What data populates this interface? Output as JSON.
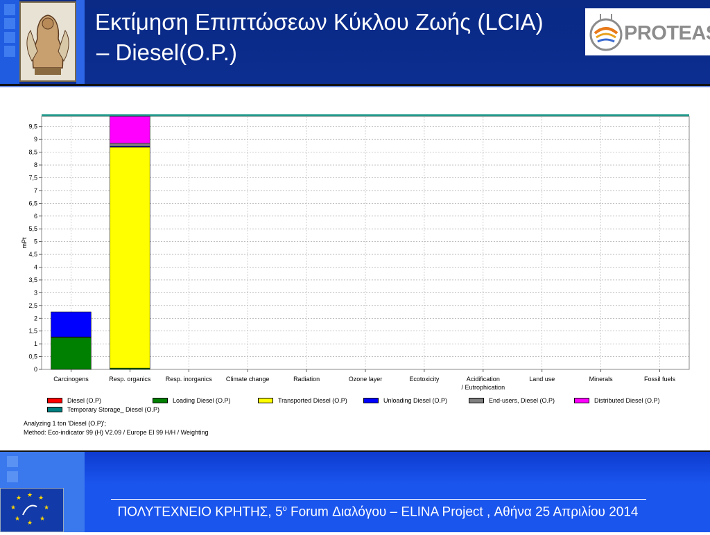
{
  "header": {
    "title_line1": "Εκτίμηση Επιπτώσεων Κύκλου Ζωής (LCIA)",
    "title_line2": "–  Diesel(O.P.)",
    "partner_logo_text": "PROTEAS"
  },
  "chart_data": {
    "type": "bar",
    "stacked": true,
    "ylabel": "mPt",
    "ylim": [
      0,
      9.9
    ],
    "yticks": [
      "0",
      "0,5",
      "1",
      "1,5",
      "2",
      "2,5",
      "3",
      "3,5",
      "4",
      "4,5",
      "5",
      "5,5",
      "6",
      "6,5",
      "7",
      "7,5",
      "8",
      "8,5",
      "9",
      "9,5"
    ],
    "categories": [
      "Carcinogens",
      "Resp. organics",
      "Resp. inorganics",
      "Climate change",
      "Radiation",
      "Ozone layer",
      "Ecotoxicity",
      "Acidification / Eutrophication",
      "Land use",
      "Minerals",
      "Fossil fuels"
    ],
    "category_lines": [
      [
        "Carcinogens"
      ],
      [
        "Resp. organics"
      ],
      [
        "Resp. inorganics"
      ],
      [
        "Climate change"
      ],
      [
        "Radiation"
      ],
      [
        "Ozone layer"
      ],
      [
        "Ecotoxicity"
      ],
      [
        "Acidification",
        "/ Eutrophication"
      ],
      [
        "Land use"
      ],
      [
        "Minerals"
      ],
      [
        "Fossil fuels"
      ]
    ],
    "series": [
      {
        "name": "Diesel (O.P)",
        "color": "#ff0000",
        "values": [
          0,
          0,
          0,
          0,
          0,
          0,
          0,
          0,
          0,
          0,
          0
        ]
      },
      {
        "name": "Loading Diesel (O.P)",
        "color": "#008000",
        "values": [
          1.25,
          0.05,
          0,
          0,
          0,
          0,
          0,
          0,
          0,
          0,
          0
        ]
      },
      {
        "name": "Transported Diesel (O.P)",
        "color": "#ffff00",
        "values": [
          0.02,
          8.65,
          0,
          0,
          0,
          0,
          0,
          0,
          0,
          0,
          0
        ]
      },
      {
        "name": "Unloading Diesel (O.P)",
        "color": "#0000ff",
        "values": [
          0.98,
          0.03,
          0,
          0,
          0,
          0,
          0,
          0,
          0,
          0,
          0
        ]
      },
      {
        "name": "End-users, Diesel (O.P)",
        "color": "#808080",
        "values": [
          0,
          0.12,
          0,
          0,
          0,
          0,
          0,
          0,
          0,
          0,
          0
        ]
      },
      {
        "name": "Distributed Diesel (O.P)",
        "color": "#ff00ff",
        "values": [
          0,
          1.05,
          0,
          0,
          0,
          0,
          0,
          0,
          0,
          0,
          0
        ]
      },
      {
        "name": "Temporary Storage_ Diesel (O.P)",
        "color": "#008080",
        "values": [
          0,
          0,
          0,
          0,
          0,
          0,
          0,
          0,
          0,
          0,
          0
        ]
      }
    ],
    "analysis_line1": "Analyzing 1 ton 'Diesel (O.P)';",
    "analysis_line2": "Method: Eco-indicator 99 (H) V2.09 / Europe EI 99 H/H / Weighting"
  },
  "footer": {
    "text_before_sup": "ΠΟΛΥΤΕΧΝΕΙΟ ΚΡΗΤΗΣ, 5",
    "sup": "o",
    "text_after_sup": "  Forum Διαλόγου – ELINA Project , Αθήνα 25 Απριλίου 2014"
  }
}
